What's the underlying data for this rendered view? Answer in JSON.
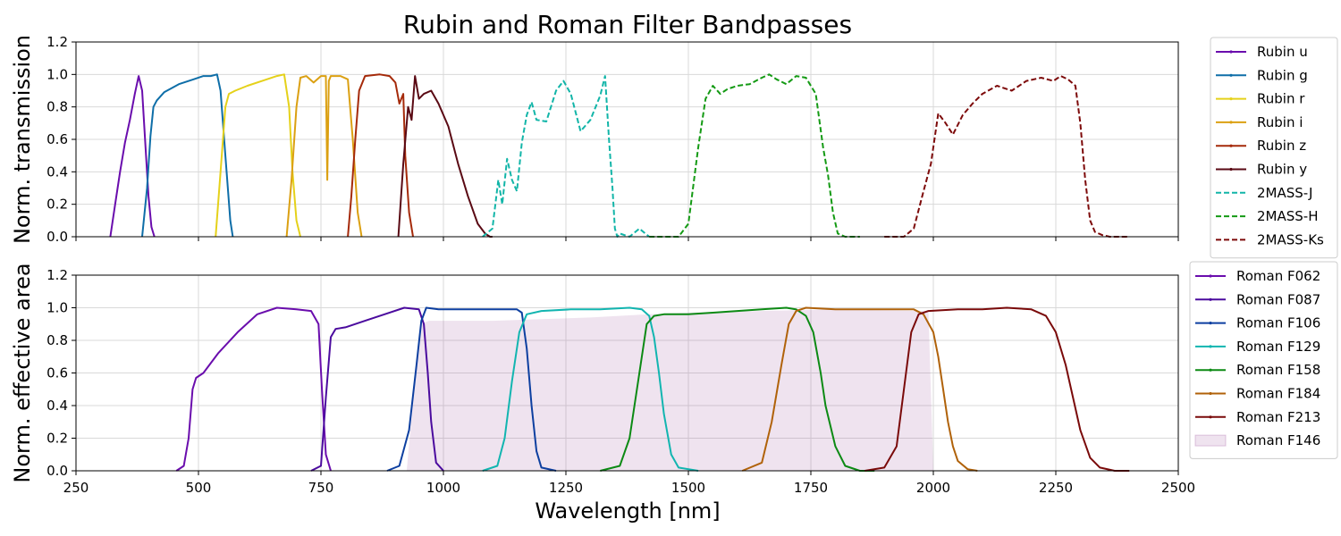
{
  "chart_data": {
    "type": "line",
    "title": "Rubin and Roman Filter Bandpasses",
    "xlabel": "Wavelength [nm]",
    "xlim": [
      250,
      2500
    ],
    "xticks": [
      250,
      500,
      750,
      1000,
      1250,
      1500,
      1750,
      2000,
      2250,
      2500
    ],
    "grid": true,
    "panels": [
      {
        "ylabel": "Norm. transmission",
        "ylim": [
          0,
          1.2
        ],
        "yticks": [
          "0.0",
          "0.2",
          "0.4",
          "0.6",
          "0.8",
          "1.0",
          "1.2"
        ],
        "legend": "outside-right",
        "series": [
          {
            "name": "Rubin u",
            "color": "#6a0dad",
            "dash": false,
            "marker": true,
            "x": [
              320,
              330,
              340,
              350,
              360,
              370,
              378,
              385,
              392,
              398,
              404,
              410
            ],
            "y": [
              0.0,
              0.2,
              0.4,
              0.58,
              0.72,
              0.88,
              0.99,
              0.9,
              0.55,
              0.25,
              0.06,
              0.0
            ]
          },
          {
            "name": "Rubin g",
            "color": "#0e6ea8",
            "dash": false,
            "marker": true,
            "x": [
              385,
              395,
              402,
              408,
              415,
              430,
              460,
              490,
              510,
              525,
              538,
              545,
              555,
              565,
              570
            ],
            "y": [
              0.0,
              0.3,
              0.62,
              0.8,
              0.84,
              0.89,
              0.94,
              0.97,
              0.99,
              0.99,
              1.0,
              0.9,
              0.5,
              0.1,
              0.0
            ]
          },
          {
            "name": "Rubin r",
            "color": "#e5d11a",
            "dash": false,
            "marker": true,
            "x": [
              535,
              545,
              555,
              562,
              575,
              600,
              630,
              660,
              675,
              685,
              692,
              700,
              708
            ],
            "y": [
              0.0,
              0.4,
              0.8,
              0.88,
              0.9,
              0.93,
              0.96,
              0.99,
              1.0,
              0.8,
              0.4,
              0.1,
              0.0
            ]
          },
          {
            "name": "Rubin i",
            "color": "#dba012",
            "dash": false,
            "marker": true,
            "x": [
              680,
              690,
              700,
              708,
              720,
              735,
              750,
              760,
              763,
              766,
              770,
              790,
              805,
              815,
              825,
              833
            ],
            "y": [
              0.0,
              0.35,
              0.8,
              0.98,
              0.99,
              0.95,
              0.99,
              0.99,
              0.35,
              0.96,
              0.99,
              0.99,
              0.97,
              0.6,
              0.15,
              0.0
            ]
          },
          {
            "name": "Rubin z",
            "color": "#a52a0a",
            "dash": false,
            "marker": true,
            "x": [
              805,
              812,
              820,
              828,
              840,
              870,
              890,
              902,
              910,
              918,
              922,
              930,
              938
            ],
            "y": [
              0.0,
              0.25,
              0.6,
              0.9,
              0.99,
              1.0,
              0.99,
              0.95,
              0.82,
              0.88,
              0.5,
              0.15,
              0.0
            ]
          },
          {
            "name": "Rubin y",
            "color": "#5a0a14",
            "dash": false,
            "marker": true,
            "x": [
              908,
              918,
              928,
              935,
              942,
              950,
              960,
              975,
              990,
              1010,
              1030,
              1050,
              1070,
              1085,
              1095,
              1100
            ],
            "y": [
              0.0,
              0.45,
              0.8,
              0.72,
              0.99,
              0.85,
              0.88,
              0.9,
              0.82,
              0.68,
              0.45,
              0.25,
              0.08,
              0.02,
              0.0,
              0.0
            ]
          },
          {
            "name": "2MASS-J",
            "color": "#12b5a8",
            "dash": true,
            "marker": false,
            "x": [
              1080,
              1100,
              1112,
              1120,
              1130,
              1140,
              1150,
              1160,
              1170,
              1180,
              1190,
              1210,
              1230,
              1245,
              1260,
              1280,
              1300,
              1320,
              1330,
              1338,
              1345,
              1350,
              1355,
              1360,
              1380,
              1400,
              1420
            ],
            "y": [
              0.0,
              0.05,
              0.35,
              0.2,
              0.48,
              0.35,
              0.28,
              0.58,
              0.75,
              0.83,
              0.72,
              0.71,
              0.9,
              0.96,
              0.88,
              0.65,
              0.72,
              0.87,
              0.99,
              0.6,
              0.3,
              0.05,
              0.0,
              0.02,
              0.0,
              0.05,
              0.0
            ]
          },
          {
            "name": "2MASS-H",
            "color": "#149a14",
            "dash": true,
            "marker": false,
            "x": [
              1420,
              1480,
              1500,
              1520,
              1535,
              1550,
              1565,
              1580,
              1600,
              1625,
              1650,
              1665,
              1680,
              1700,
              1720,
              1740,
              1760,
              1775,
              1785,
              1795,
              1805,
              1820,
              1850
            ],
            "y": [
              0.0,
              0.0,
              0.08,
              0.55,
              0.85,
              0.93,
              0.88,
              0.91,
              0.93,
              0.94,
              0.98,
              1.0,
              0.97,
              0.94,
              0.99,
              0.98,
              0.88,
              0.55,
              0.38,
              0.15,
              0.02,
              0.0,
              0.0
            ]
          },
          {
            "name": "2MASS-Ks",
            "color": "#7d0a0a",
            "dash": true,
            "marker": false,
            "x": [
              1900,
              1940,
              1960,
              1980,
              1995,
              2010,
              2025,
              2040,
              2060,
              2080,
              2100,
              2130,
              2160,
              2190,
              2220,
              2245,
              2260,
              2275,
              2290,
              2300,
              2310,
              2320,
              2330,
              2345,
              2360,
              2400
            ],
            "y": [
              0.0,
              0.0,
              0.05,
              0.28,
              0.45,
              0.76,
              0.7,
              0.63,
              0.75,
              0.82,
              0.88,
              0.93,
              0.9,
              0.96,
              0.98,
              0.96,
              0.99,
              0.97,
              0.93,
              0.7,
              0.35,
              0.1,
              0.03,
              0.01,
              0.0,
              0.0
            ]
          }
        ]
      },
      {
        "ylabel": "Norm. effective area",
        "ylim": [
          0,
          1.2
        ],
        "yticks": [
          "0.0",
          "0.2",
          "0.4",
          "0.6",
          "0.8",
          "1.0",
          "1.2"
        ],
        "legend": "outside-right",
        "series": [
          {
            "name": "Roman F062",
            "color": "#6a0dad",
            "dash": false,
            "marker": true,
            "x": [
              455,
              470,
              480,
              488,
              495,
              510,
              540,
              580,
              620,
              660,
              700,
              730,
              745,
              752,
              760,
              770
            ],
            "y": [
              0.0,
              0.03,
              0.2,
              0.5,
              0.57,
              0.6,
              0.72,
              0.85,
              0.96,
              1.0,
              0.99,
              0.98,
              0.9,
              0.5,
              0.1,
              0.0
            ]
          },
          {
            "name": "Roman F087",
            "color": "#4b0b9e",
            "dash": false,
            "marker": true,
            "x": [
              730,
              750,
              760,
              770,
              780,
              800,
              840,
              880,
              920,
              950,
              960,
              968,
              975,
              985,
              1000
            ],
            "y": [
              0.0,
              0.03,
              0.45,
              0.82,
              0.87,
              0.88,
              0.92,
              0.96,
              1.0,
              0.99,
              0.9,
              0.6,
              0.3,
              0.05,
              0.0
            ]
          },
          {
            "name": "Roman F106",
            "color": "#0d3fa0",
            "dash": false,
            "marker": true,
            "x": [
              885,
              910,
              930,
              945,
              955,
              965,
              990,
              1050,
              1100,
              1150,
              1160,
              1170,
              1180,
              1190,
              1200,
              1230
            ],
            "y": [
              0.0,
              0.03,
              0.25,
              0.65,
              0.92,
              1.0,
              0.99,
              0.99,
              0.99,
              0.99,
              0.97,
              0.75,
              0.4,
              0.12,
              0.02,
              0.0
            ]
          },
          {
            "name": "Roman F129",
            "color": "#12b5b0",
            "dash": false,
            "marker": true,
            "x": [
              1080,
              1110,
              1125,
              1140,
              1155,
              1170,
              1200,
              1260,
              1320,
              1380,
              1405,
              1420,
              1430,
              1440,
              1450,
              1465,
              1480,
              1520
            ],
            "y": [
              0.0,
              0.03,
              0.2,
              0.55,
              0.85,
              0.96,
              0.98,
              0.99,
              0.99,
              1.0,
              0.99,
              0.95,
              0.82,
              0.6,
              0.35,
              0.1,
              0.02,
              0.0
            ]
          },
          {
            "name": "Roman F158",
            "color": "#0c8a14",
            "dash": false,
            "marker": true,
            "x": [
              1320,
              1360,
              1380,
              1400,
              1415,
              1430,
              1450,
              1500,
              1550,
              1600,
              1650,
              1700,
              1720,
              1740,
              1755,
              1770,
              1780,
              1800,
              1820,
              1850,
              1880
            ],
            "y": [
              0.0,
              0.03,
              0.2,
              0.6,
              0.9,
              0.95,
              0.96,
              0.96,
              0.97,
              0.98,
              0.99,
              1.0,
              0.99,
              0.95,
              0.85,
              0.6,
              0.4,
              0.15,
              0.03,
              0.0,
              0.0
            ]
          },
          {
            "name": "Roman F184",
            "color": "#b0620a",
            "dash": false,
            "marker": true,
            "x": [
              1610,
              1650,
              1670,
              1690,
              1705,
              1720,
              1740,
              1800,
              1900,
              1960,
              1980,
              2000,
              2010,
              2020,
              2030,
              2040,
              2050,
              2070,
              2090
            ],
            "y": [
              0.0,
              0.05,
              0.3,
              0.65,
              0.9,
              0.98,
              1.0,
              0.99,
              0.99,
              0.99,
              0.96,
              0.85,
              0.7,
              0.5,
              0.3,
              0.15,
              0.06,
              0.01,
              0.0
            ]
          },
          {
            "name": "Roman F213",
            "color": "#7a0a0a",
            "dash": false,
            "marker": true,
            "x": [
              1860,
              1900,
              1925,
              1940,
              1955,
              1970,
              1990,
              2050,
              2100,
              2150,
              2200,
              2230,
              2250,
              2270,
              2285,
              2300,
              2320,
              2340,
              2370,
              2400
            ],
            "y": [
              0.0,
              0.02,
              0.15,
              0.5,
              0.85,
              0.96,
              0.98,
              0.99,
              0.99,
              1.0,
              0.99,
              0.95,
              0.85,
              0.65,
              0.45,
              0.25,
              0.08,
              0.02,
              0.0,
              0.0
            ]
          },
          {
            "name": "Roman F146",
            "color": "#9b4f9b",
            "fill": true,
            "opacity": 0.16,
            "x": [
              925,
              940,
              955,
              970,
              1100,
              1300,
              1420,
              1500,
              1800,
              1990,
              2000
            ],
            "y": [
              0.0,
              0.5,
              0.9,
              0.92,
              0.92,
              0.94,
              0.96,
              0.97,
              0.99,
              0.98,
              0.0
            ]
          }
        ]
      }
    ]
  }
}
